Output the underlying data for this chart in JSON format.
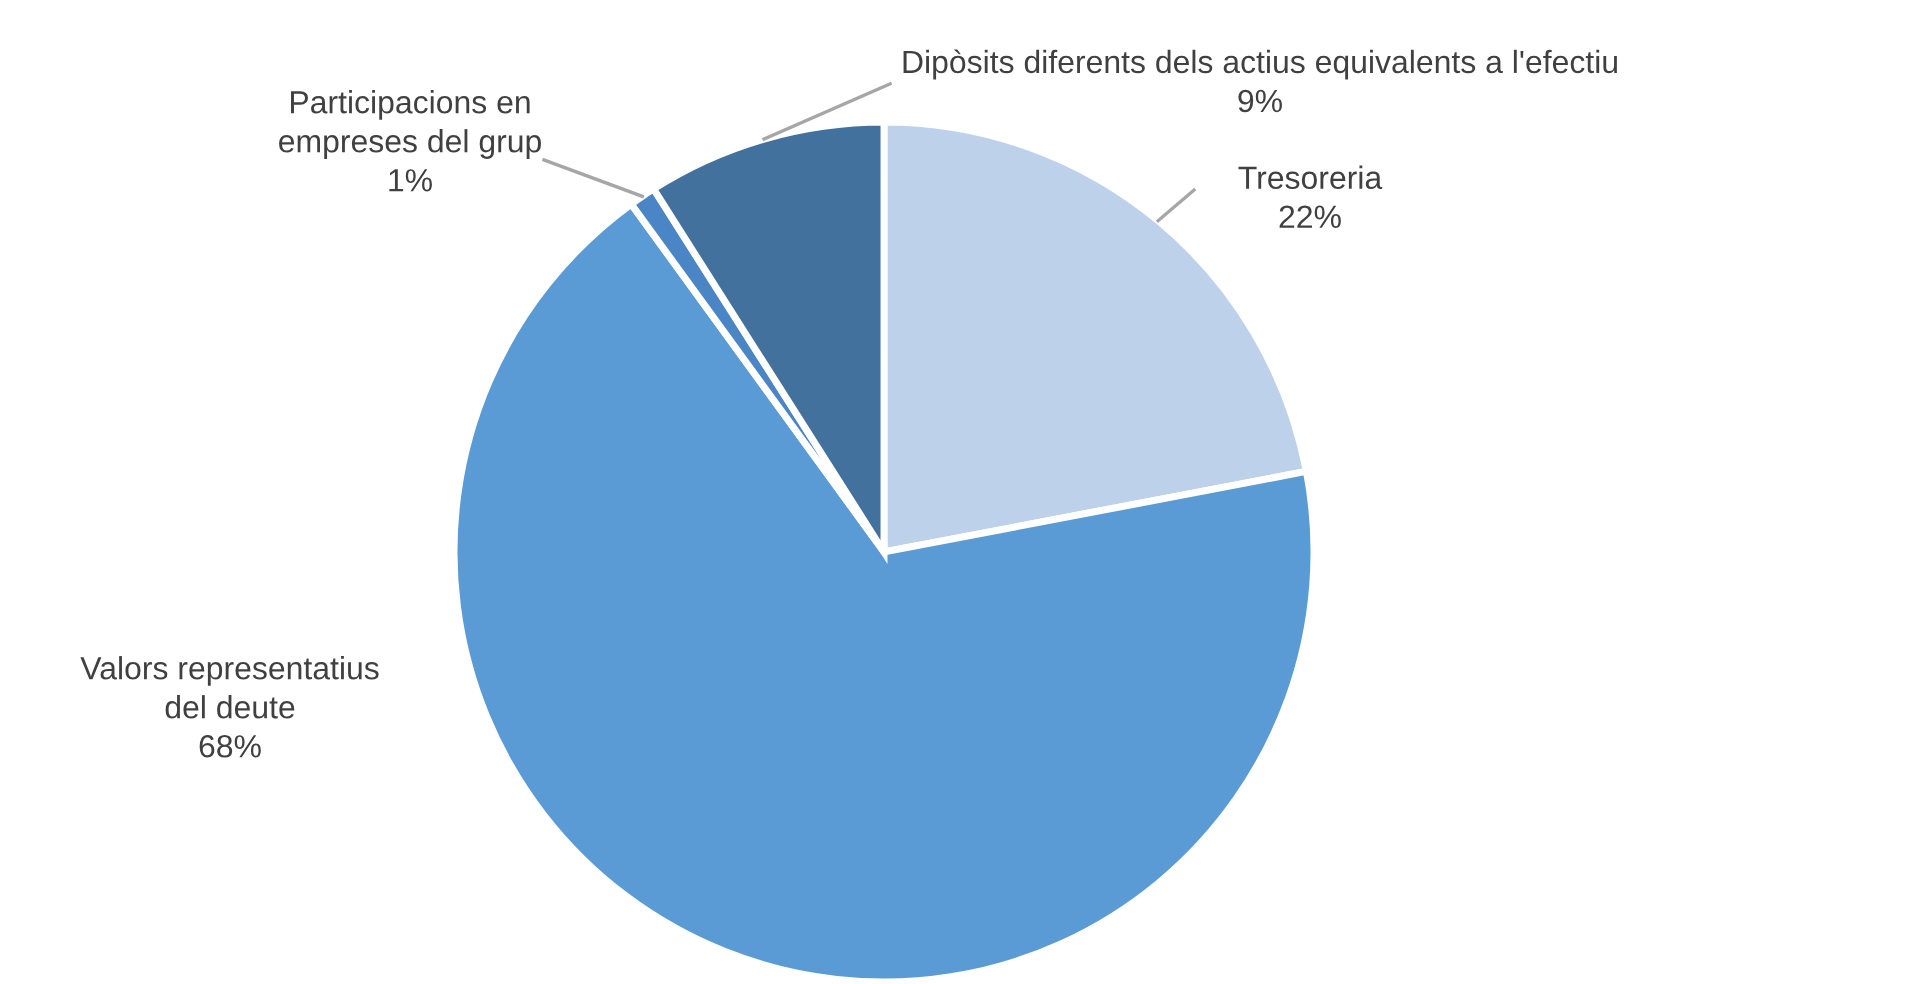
{
  "chart_data": {
    "type": "pie",
    "categories": [
      "Tresoreria",
      "Valors representatius del deute",
      "Participacions en empreses del grup",
      "Dipòsits diferents dels actius equivalents a l'efectiu"
    ],
    "values": [
      22,
      68,
      1,
      9
    ],
    "colors": [
      "#bdd1ea",
      "#5b9bd5",
      "#4a86c5",
      "#41719c"
    ],
    "value_labels": [
      "22%",
      "68%",
      "1%",
      "9%"
    ],
    "legend": false
  }
}
